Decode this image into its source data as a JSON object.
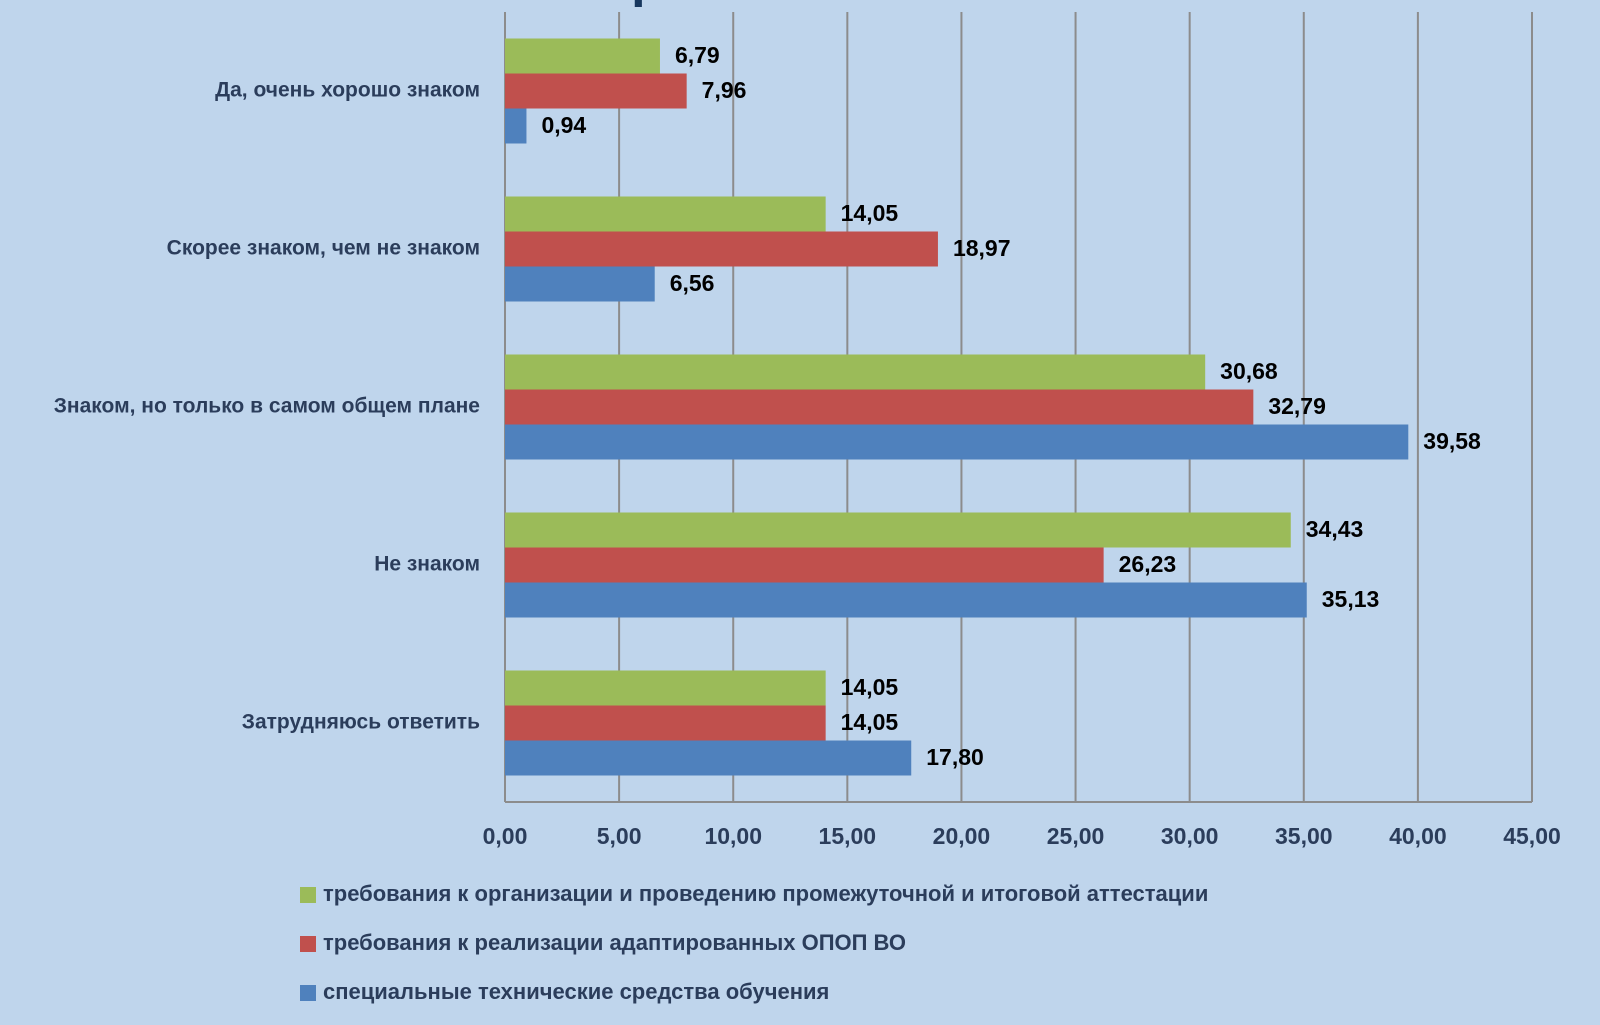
{
  "chart_data": {
    "type": "hbar",
    "title": "образования",
    "categories": [
      "Да, очень хорошо знаком",
      "Скорее знаком, чем не знаком",
      "Знаком, но только в самом общем плане",
      "Не знаком",
      "Затрудняюсь ответить"
    ],
    "series": [
      {
        "name": "требования к организации и проведению промежуточной и итоговой аттестации",
        "color": "#9bbb59",
        "values": [
          6.79,
          14.05,
          30.68,
          34.43,
          14.05
        ],
        "value_labels": [
          "6,79",
          "14,05",
          "30,68",
          "34,43",
          "14,05"
        ]
      },
      {
        "name": "требования к реализации адаптированных ОПОП ВО",
        "color": "#c0504d",
        "values": [
          7.96,
          18.97,
          32.79,
          26.23,
          14.05
        ],
        "value_labels": [
          "7,96",
          "18,97",
          "32,79",
          "26,23",
          "14,05"
        ]
      },
      {
        "name": "специальные технические средства обучения",
        "color": "#4f81bd",
        "values": [
          0.94,
          6.56,
          39.58,
          35.13,
          17.8
        ],
        "value_labels": [
          "0,94",
          "6,56",
          "39,58",
          "35,13",
          "17,80"
        ]
      }
    ],
    "xlim": [
      0,
      45
    ],
    "xticks": [
      {
        "value": 0,
        "label": "0,00"
      },
      {
        "value": 5,
        "label": "5,00"
      },
      {
        "value": 10,
        "label": "10,00"
      },
      {
        "value": 15,
        "label": "15,00"
      },
      {
        "value": 20,
        "label": "20,00"
      },
      {
        "value": 25,
        "label": "25,00"
      },
      {
        "value": 30,
        "label": "30,00"
      },
      {
        "value": 35,
        "label": "35,00"
      },
      {
        "value": 40,
        "label": "40,00"
      },
      {
        "value": 45,
        "label": "45,00"
      }
    ],
    "grid": true,
    "legend": "bottom"
  }
}
